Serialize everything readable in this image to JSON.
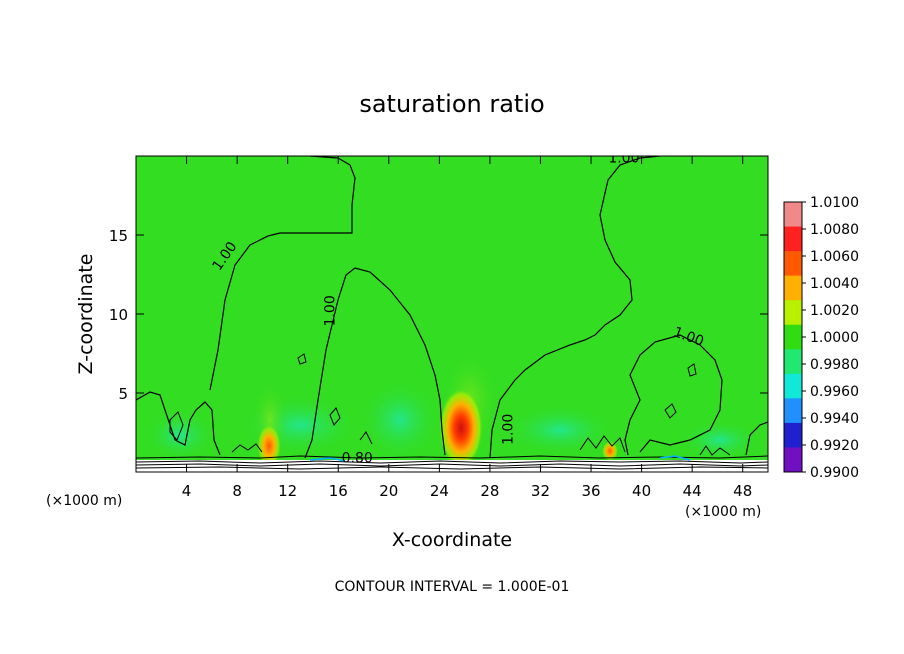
{
  "chart_data": {
    "type": "contour",
    "title": "saturation ratio",
    "xlabel": "X-coordinate",
    "ylabel": "Z-coordinate",
    "x_unit_left": "(×1000 m)",
    "x_unit_right": "(×1000 m)",
    "xlim": [
      0,
      50
    ],
    "ylim": [
      0,
      20
    ],
    "x_ticks": [
      4,
      8,
      12,
      16,
      20,
      24,
      28,
      32,
      36,
      40,
      44,
      48
    ],
    "y_ticks": [
      5,
      10,
      15
    ],
    "footer": "CONTOUR INTERVAL = 1.000E-01",
    "colorbar": {
      "levels": [
        "1.0100",
        "1.0080",
        "1.0060",
        "1.0040",
        "1.0020",
        "1.0000",
        "0.9980",
        "0.9960",
        "0.9940",
        "0.9920",
        "0.9900"
      ],
      "colors": [
        "#f08a8a",
        "#ff2020",
        "#ff5a00",
        "#ffb000",
        "#b8f000",
        "#30dd10",
        "#20e870",
        "#10e8d8",
        "#2090ff",
        "#2020d0",
        "#7010c0"
      ]
    },
    "background_color": "#33dd22",
    "contour_labels": [
      {
        "text": "1.00",
        "x": 38.6,
        "z": 19.6
      },
      {
        "text": "1.00",
        "x": 7.3,
        "z": 13.5
      },
      {
        "text": "1.00",
        "x": 15.7,
        "z": 10.2
      },
      {
        "text": "1.00",
        "x": 43.6,
        "z": 8.3
      },
      {
        "text": "1.00",
        "x": 29.8,
        "z": 2.7
      },
      {
        "text": "0.80",
        "x": 17.5,
        "z": 0.6
      }
    ],
    "hotspots": [
      {
        "x": 25.8,
        "z": 2.6,
        "value": 1.008
      },
      {
        "x": 10.5,
        "z": 1.6,
        "value": 1.004
      },
      {
        "x": 37.5,
        "z": 1.2,
        "value": 1.003
      }
    ]
  }
}
